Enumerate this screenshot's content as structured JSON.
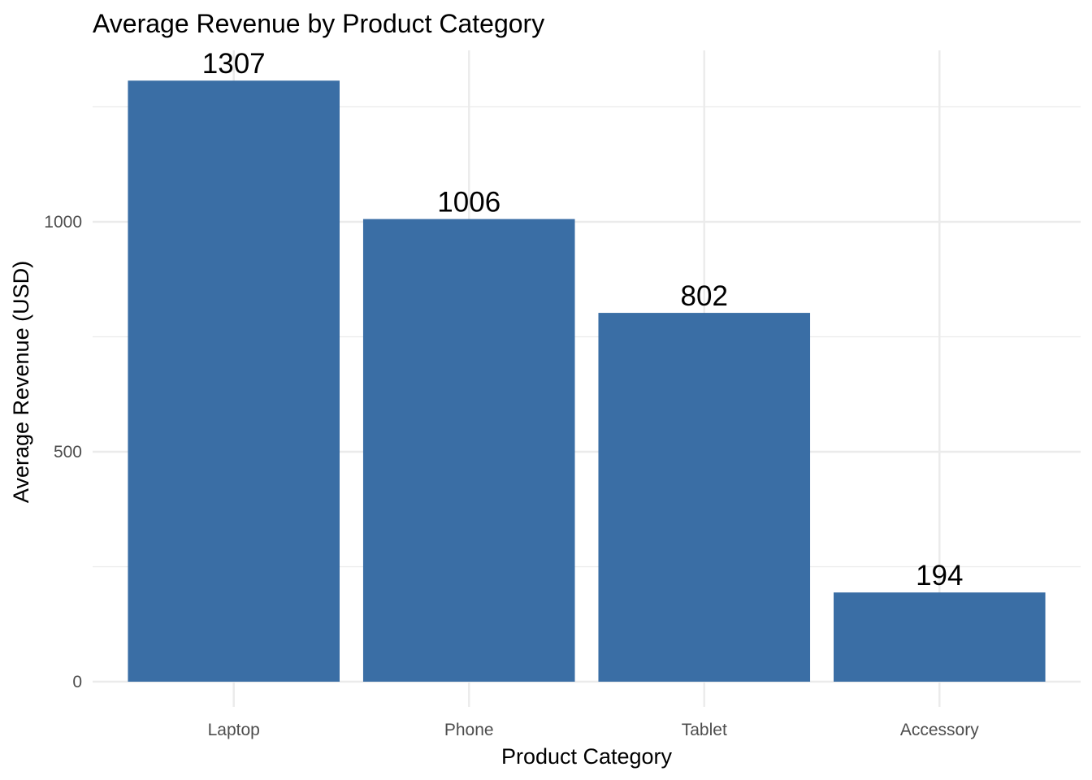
{
  "chart_data": {
    "type": "bar",
    "title": "Average Revenue by Product Category",
    "xlabel": "Product Category",
    "ylabel": "Average Revenue (USD)",
    "categories": [
      "Laptop",
      "Phone",
      "Tablet",
      "Accessory"
    ],
    "values": [
      1307,
      1006,
      802,
      194
    ],
    "data_labels": [
      "1307",
      "1006",
      "802",
      "194"
    ],
    "ylim": [
      0,
      1375
    ],
    "y_ticks": [
      0,
      500,
      1000
    ],
    "y_tick_labels": [
      "0",
      "500",
      "1000"
    ],
    "y_minor_ticks": [
      250,
      750,
      1250
    ],
    "grid": true,
    "legend": "none",
    "colors": {
      "bar": "#3A6EA5",
      "grid": "#EBEBEB",
      "background": "#FFFFFF",
      "tick_text": "#4D4D4D",
      "text": "#000000"
    }
  }
}
